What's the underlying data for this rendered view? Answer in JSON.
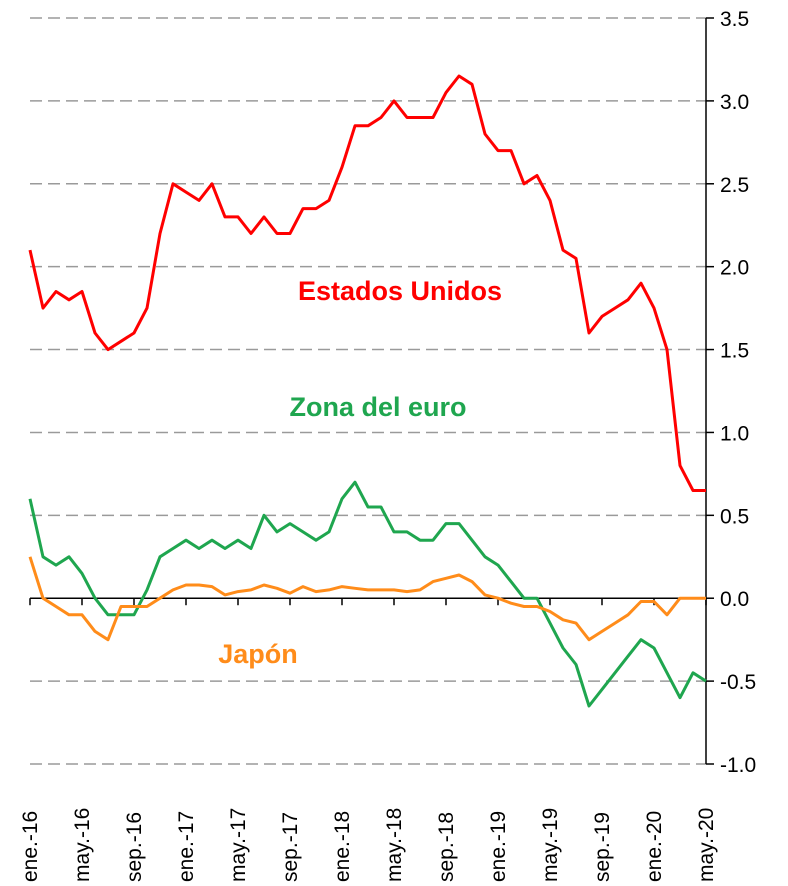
{
  "chart_data": {
    "type": "line",
    "categories": [
      "ene.-16",
      null,
      null,
      null,
      "may.-16",
      null,
      null,
      null,
      "sep.-16",
      null,
      null,
      null,
      "ene.-17",
      null,
      null,
      null,
      "may.-17",
      null,
      null,
      null,
      "sep.-17",
      null,
      null,
      null,
      "ene.-18",
      null,
      null,
      null,
      "may.-18",
      null,
      null,
      null,
      "sep.-18",
      null,
      null,
      null,
      "ene.-19",
      null,
      null,
      null,
      "may.-19",
      null,
      null,
      null,
      "sep.-19",
      null,
      null,
      null,
      "ene.-20",
      null,
      null,
      null,
      "may.-20"
    ],
    "series": [
      {
        "name": "Estados Unidos",
        "color": "#ff0000",
        "values": [
          2.1,
          1.75,
          1.85,
          1.8,
          1.85,
          1.6,
          1.5,
          1.55,
          1.6,
          1.75,
          2.2,
          2.5,
          2.45,
          2.4,
          2.5,
          2.3,
          2.3,
          2.2,
          2.3,
          2.2,
          2.2,
          2.35,
          2.35,
          2.4,
          2.6,
          2.85,
          2.85,
          2.9,
          3.0,
          2.9,
          2.9,
          2.9,
          3.05,
          3.15,
          3.1,
          2.8,
          2.7,
          2.7,
          2.5,
          2.55,
          2.4,
          2.1,
          2.05,
          1.6,
          1.7,
          1.75,
          1.8,
          1.9,
          1.75,
          1.5,
          0.8,
          0.65,
          0.65
        ]
      },
      {
        "name": "Zona del euro",
        "color": "#1fa64f",
        "values": [
          0.6,
          0.25,
          0.2,
          0.25,
          0.15,
          0.0,
          -0.1,
          -0.1,
          -0.1,
          0.05,
          0.25,
          0.3,
          0.35,
          0.3,
          0.35,
          0.3,
          0.35,
          0.3,
          0.5,
          0.4,
          0.45,
          0.4,
          0.35,
          0.4,
          0.6,
          0.7,
          0.55,
          0.55,
          0.4,
          0.4,
          0.35,
          0.35,
          0.45,
          0.45,
          0.35,
          0.25,
          0.2,
          0.1,
          0.0,
          0.0,
          -0.15,
          -0.3,
          -0.4,
          -0.65,
          -0.55,
          -0.45,
          -0.35,
          -0.25,
          -0.3,
          -0.45,
          -0.6,
          -0.45,
          -0.5
        ]
      },
      {
        "name": "Japón",
        "color": "#ff8c1a",
        "values": [
          0.25,
          0.0,
          -0.05,
          -0.1,
          -0.1,
          -0.2,
          -0.25,
          -0.05,
          -0.05,
          -0.05,
          0.0,
          0.05,
          0.08,
          0.08,
          0.07,
          0.02,
          0.04,
          0.05,
          0.08,
          0.06,
          0.03,
          0.07,
          0.04,
          0.05,
          0.07,
          0.06,
          0.05,
          0.05,
          0.05,
          0.04,
          0.05,
          0.1,
          0.12,
          0.14,
          0.1,
          0.02,
          0.0,
          -0.03,
          -0.05,
          -0.05,
          -0.08,
          -0.13,
          -0.15,
          -0.25,
          -0.2,
          -0.15,
          -0.1,
          -0.02,
          -0.02,
          -0.1,
          0.0,
          0.0,
          0.0
        ]
      }
    ],
    "ylim": [
      -1,
      3.5
    ],
    "yticks": [
      {
        "value": -1,
        "label": "-1.0"
      },
      -0.5,
      {
        "value": 0,
        "label": "0.0"
      },
      0.5,
      {
        "value": 1,
        "label": "1.0"
      },
      1.5,
      {
        "value": 2,
        "label": "2.0"
      },
      2.5,
      {
        "value": 3,
        "label": "3.0"
      },
      3.5
    ],
    "y_axis_side": "right",
    "grid": true
  }
}
